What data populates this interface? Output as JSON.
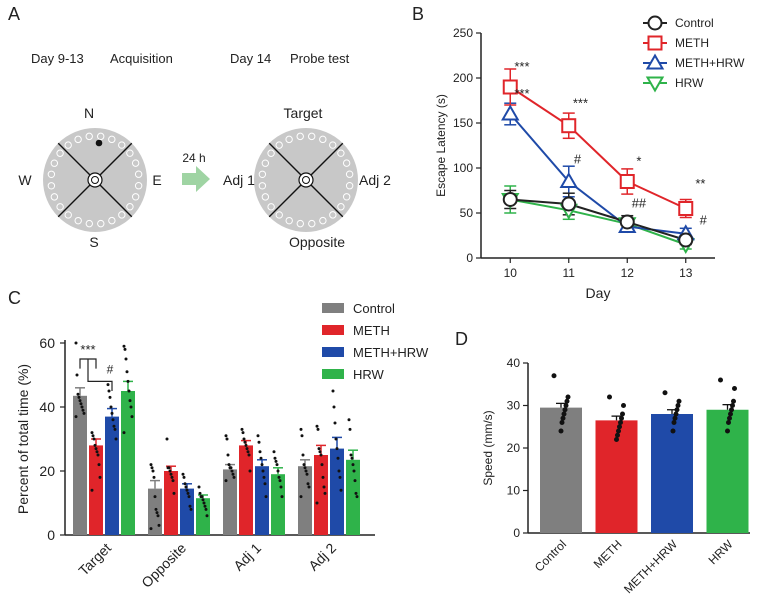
{
  "colors": {
    "control": "#7f7f7f",
    "meth": "#e0252a",
    "meth_hrw": "#1f4aa8",
    "hrw": "#2fb34a",
    "pool": "#c8c8c8",
    "arrow": "#9fd4a3"
  },
  "panelA": {
    "label": "A",
    "acq_day": "Day 9-13",
    "acq_title": "Acquisition",
    "probe_day": "Day 14",
    "probe_title": "Probe test",
    "n": "N",
    "s": "S",
    "w": "W",
    "e": "E",
    "interval": "24 h",
    "target": "Target",
    "opposite": "Opposite",
    "adj1": "Adj 1",
    "adj2": "Adj 2"
  },
  "panelB": {
    "label": "B"
  },
  "panelC": {
    "label": "C"
  },
  "panelD": {
    "label": "D"
  },
  "chart_data": [
    {
      "id": "B",
      "type": "line",
      "xlabel": "Day",
      "ylabel": "Escape Latency (s)",
      "x": [
        10,
        11,
        12,
        13
      ],
      "ylim": [
        0,
        250
      ],
      "yticks": [
        0,
        50,
        100,
        150,
        200,
        250
      ],
      "legend_position": "top-right",
      "series": [
        {
          "name": "Control",
          "color": "#222222",
          "marker": "circle",
          "values": [
            65,
            60,
            40,
            20
          ],
          "errors": [
            10,
            12,
            7,
            5
          ]
        },
        {
          "name": "METH",
          "color": "#e0252a",
          "marker": "square",
          "values": [
            190,
            147,
            85,
            55
          ],
          "errors": [
            20,
            14,
            14,
            10
          ]
        },
        {
          "name": "METH+HRW",
          "color": "#1f4aa8",
          "marker": "triangle-up",
          "values": [
            160,
            85,
            35,
            27
          ],
          "errors": [
            12,
            17,
            6,
            6
          ]
        },
        {
          "name": "HRW",
          "color": "#2fb34a",
          "marker": "triangle-down",
          "values": [
            65,
            53,
            38,
            15
          ],
          "errors": [
            15,
            10,
            6,
            5
          ]
        }
      ],
      "annotations": [
        {
          "x": 10.2,
          "y": 208,
          "text": "***",
          "color": "#222"
        },
        {
          "x": 10.2,
          "y": 178,
          "text": "***",
          "color": "#222"
        },
        {
          "x": 11.2,
          "y": 167,
          "text": "***",
          "color": "#222"
        },
        {
          "x": 11.15,
          "y": 105,
          "text": "#",
          "color": "#222"
        },
        {
          "x": 12.2,
          "y": 103,
          "text": "*",
          "color": "#222"
        },
        {
          "x": 12.2,
          "y": 56,
          "text": "##",
          "color": "#222"
        },
        {
          "x": 13.25,
          "y": 78,
          "text": "**",
          "color": "#222"
        },
        {
          "x": 13.3,
          "y": 37,
          "text": "#",
          "color": "#222"
        }
      ]
    },
    {
      "id": "C",
      "type": "bar",
      "ylabel": "Percent of total time (%)",
      "categories": [
        "Target",
        "Opposite",
        "Adj 1",
        "Adj 2"
      ],
      "ylim": [
        0,
        60
      ],
      "yticks": [
        0,
        20,
        40,
        60
      ],
      "legend_position": "top-right",
      "series": [
        {
          "name": "Control",
          "color": "#7f7f7f",
          "values": [
            43.5,
            14.5,
            20.5,
            21.5
          ],
          "errors": [
            2.5,
            2.5,
            1.5,
            2
          ],
          "points": [
            [
              60,
              50,
              44,
              43,
              42,
              41,
              40,
              39,
              38,
              37
            ],
            [
              22,
              21,
              20,
              18,
              12,
              8,
              7,
              6,
              3,
              2
            ],
            [
              31,
              30,
              25,
              22,
              21,
              21,
              20,
              19,
              18,
              17
            ],
            [
              33,
              31,
              25,
              22,
              21,
              20,
              19,
              16,
              15,
              12
            ]
          ]
        },
        {
          "name": "METH",
          "color": "#e0252a",
          "values": [
            28,
            20,
            28,
            25
          ],
          "errors": [
            2,
            1.5,
            1.5,
            3
          ],
          "points": [
            [
              32,
              31,
              30,
              28,
              27,
              26,
              25,
              22,
              18,
              14
            ],
            [
              30,
              21,
              21,
              20,
              19,
              18,
              17,
              13
            ],
            [
              33,
              32,
              30,
              29,
              28,
              27,
              26,
              25,
              20
            ],
            [
              34,
              33,
              27,
              26,
              25,
              22,
              18,
              15,
              13,
              10
            ]
          ]
        },
        {
          "name": "METH+HRW",
          "color": "#1f4aa8",
          "values": [
            37,
            14.5,
            21.5,
            27
          ],
          "errors": [
            2.5,
            1.5,
            2,
            3.5
          ],
          "points": [
            [
              47,
              45,
              43,
              40,
              38,
              36,
              34,
              33,
              30
            ],
            [
              19,
              18,
              16,
              15,
              14,
              13,
              12,
              9,
              8
            ],
            [
              31,
              29,
              26,
              24,
              22,
              20,
              18,
              16,
              12
            ],
            [
              45,
              40,
              35,
              30,
              27,
              24,
              20,
              18,
              14
            ]
          ]
        },
        {
          "name": "HRW",
          "color": "#2fb34a",
          "values": [
            45,
            11.5,
            19,
            23.5
          ],
          "errors": [
            3,
            1,
            2,
            3
          ],
          "points": [
            [
              59,
              58,
              55,
              51,
              48,
              45,
              42,
              40,
              37,
              32
            ],
            [
              15,
              13,
              12,
              12,
              11,
              10,
              9,
              8,
              6
            ],
            [
              26,
              24,
              23,
              22,
              20,
              18,
              17,
              15,
              12
            ],
            [
              36,
              33,
              25,
              24,
              22,
              20,
              17,
              13,
              12
            ]
          ]
        }
      ],
      "significance": [
        {
          "text": "***",
          "from": 0,
          "to": 1
        },
        {
          "text": "#",
          "from": 0,
          "to": 2
        }
      ]
    },
    {
      "id": "D",
      "type": "bar",
      "ylabel": "Speed (mm/s)",
      "categories": [
        "Control",
        "METH",
        "METH+HRW",
        "HRW"
      ],
      "colors": [
        "#7f7f7f",
        "#e0252a",
        "#1f4aa8",
        "#2fb34a"
      ],
      "values": [
        29.5,
        26.5,
        28,
        29
      ],
      "errors": [
        1,
        1,
        1,
        1.2
      ],
      "ylim": [
        0,
        40
      ],
      "yticks": [
        0,
        10,
        20,
        30,
        40
      ],
      "points": [
        [
          37,
          32,
          31,
          30,
          29,
          28,
          27,
          26,
          24
        ],
        [
          32,
          30,
          28,
          27,
          26,
          25,
          24,
          23,
          22
        ],
        [
          33,
          31,
          30,
          29,
          28,
          27,
          26,
          24
        ],
        [
          36,
          34,
          31,
          30,
          29,
          28,
          27,
          26,
          24
        ]
      ]
    }
  ]
}
